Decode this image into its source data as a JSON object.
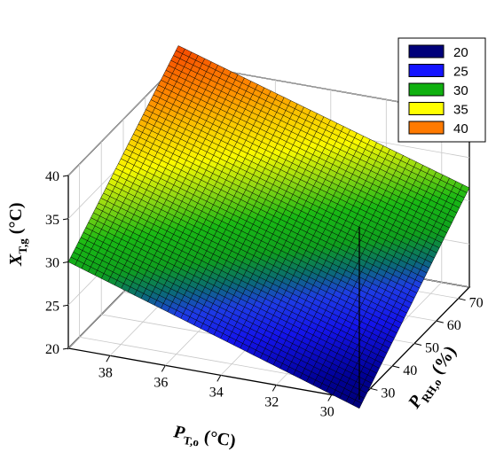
{
  "chart_data": {
    "type": "surface",
    "zlabel": {
      "main": "X",
      "sub": "T,g",
      "unit": "(°C)"
    },
    "xlabel": {
      "main": "P",
      "sub": "T,o",
      "unit": "(°C)"
    },
    "ylabel": {
      "main": "P",
      "sub": "RH,o",
      "unit": "(%)"
    },
    "z_ticks": [
      "20",
      "25",
      "30",
      "35",
      "40"
    ],
    "x_ticks": [
      "30",
      "32",
      "34",
      "36",
      "38"
    ],
    "y_ticks": [
      "30",
      "40",
      "50",
      "60",
      "70"
    ],
    "x_range": [
      29,
      39.5
    ],
    "y_range": [
      25,
      75
    ],
    "z_range": [
      20,
      40
    ],
    "corner_values": [
      {
        "x": 39.5,
        "y": 25,
        "z": 30
      },
      {
        "x": 29,
        "y": 25,
        "z": 19
      },
      {
        "x": 29,
        "y": 75,
        "z": 31.5
      },
      {
        "x": 39.5,
        "y": 75,
        "z": 42
      }
    ],
    "legend": {
      "position": "top-right",
      "entries": [
        {
          "label": "20",
          "color": "#00007a"
        },
        {
          "label": "25",
          "color": "#1414ff"
        },
        {
          "label": "30",
          "color": "#10b010"
        },
        {
          "label": "35",
          "color": "#ffff00"
        },
        {
          "label": "40",
          "color": "#ff7a00"
        }
      ]
    }
  }
}
